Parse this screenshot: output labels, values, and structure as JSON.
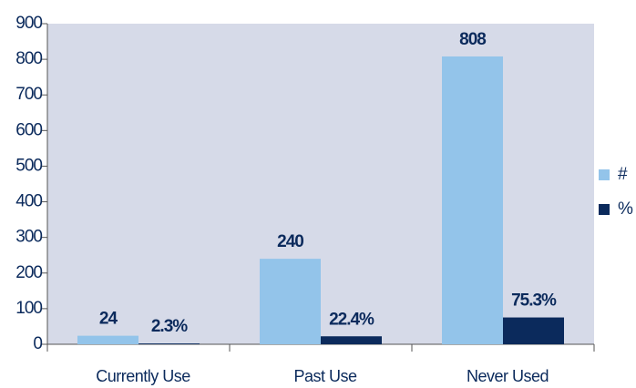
{
  "chart_data": {
    "type": "bar",
    "categories": [
      "Currently Use",
      "Past Use",
      "Never Used"
    ],
    "series": [
      {
        "name": "#",
        "color": "#93c4ea",
        "values": [
          24,
          240,
          808
        ]
      },
      {
        "name": "%",
        "color": "#0b2a5c",
        "values": [
          2.3,
          22.4,
          75.3
        ],
        "value_labels": [
          "2.3%",
          "22.4%",
          "75.3%"
        ]
      }
    ],
    "ylim": [
      0,
      900
    ],
    "yticks": [
      0,
      100,
      200,
      300,
      400,
      500,
      600,
      700,
      800,
      900
    ],
    "legend": "right"
  }
}
